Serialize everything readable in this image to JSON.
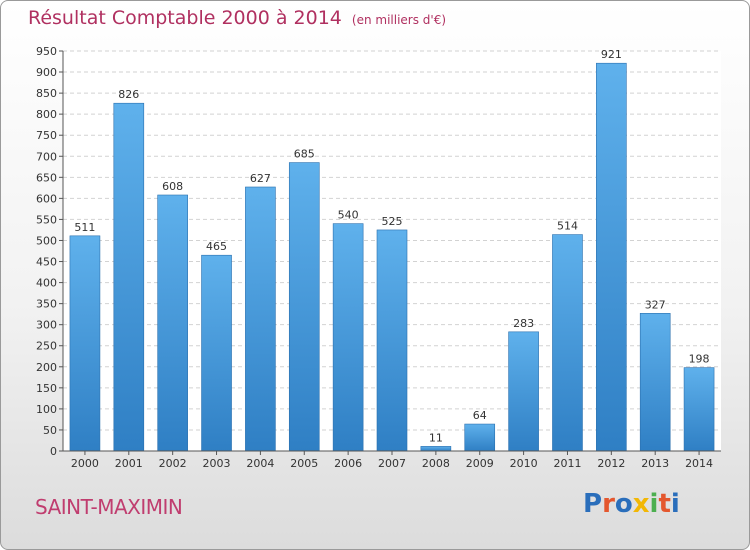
{
  "title": "Résultat Comptable 2000 à 2014",
  "subtitle": "(en milliers d'€)",
  "commune": "SAINT-MAXIMIN",
  "logo": {
    "text": "Proxiti",
    "colors": [
      "#2a6ebb",
      "#e4572e",
      "#2a6ebb",
      "#f2b705",
      "#4caf50",
      "#e4572e",
      "#2a6ebb"
    ]
  },
  "chart_data": {
    "type": "bar",
    "title": "Résultat Comptable 2000 à 2014",
    "subtitle": "(en milliers d'€)",
    "xlabel": "",
    "ylabel": "",
    "categories": [
      "2000",
      "2001",
      "2002",
      "2003",
      "2004",
      "2005",
      "2006",
      "2007",
      "2008",
      "2009",
      "2010",
      "2011",
      "2012",
      "2013",
      "2014"
    ],
    "values": [
      511,
      826,
      608,
      465,
      627,
      685,
      540,
      525,
      11,
      64,
      283,
      514,
      921,
      327,
      198
    ],
    "yticks": [
      0,
      50,
      100,
      150,
      200,
      250,
      300,
      350,
      400,
      450,
      500,
      550,
      600,
      650,
      700,
      750,
      800,
      850,
      900,
      950
    ],
    "ylim": [
      0,
      950
    ],
    "grid": true,
    "legend": "none",
    "bar_color": "#4a9ede"
  }
}
